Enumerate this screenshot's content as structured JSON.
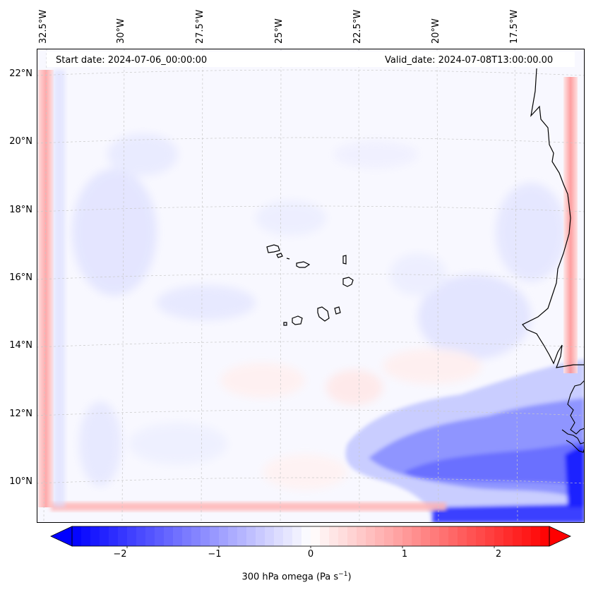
{
  "header": {
    "start_date": "Start date: 2024-07-06_00:00:00",
    "valid_date": "Valid_date: 2024-07-08T13:00:00.00"
  },
  "longitude_labels": [
    "32.5°W",
    "30°W",
    "27.5°W",
    "25°W",
    "22.5°W",
    "20°W",
    "17.5°W"
  ],
  "latitude_labels": [
    "22°N",
    "20°N",
    "18°N",
    "16°N",
    "14°N",
    "12°N",
    "10°N"
  ],
  "colorbar": {
    "ticks": [
      "−2",
      "−1",
      "0",
      "1",
      "2"
    ],
    "label_main": "300 hPa omega (Pa s",
    "label_sup": "−1",
    "label_end": ")",
    "min": -2.6,
    "max": 2.6,
    "colors": {
      "negative": "#0000ff",
      "zero": "#ffffff",
      "positive": "#ff0000"
    }
  },
  "map": {
    "field": "300 hPa omega",
    "units": "Pa s-1",
    "coastline_color": "#000000",
    "gridline_color": "#c8c8c8"
  }
}
